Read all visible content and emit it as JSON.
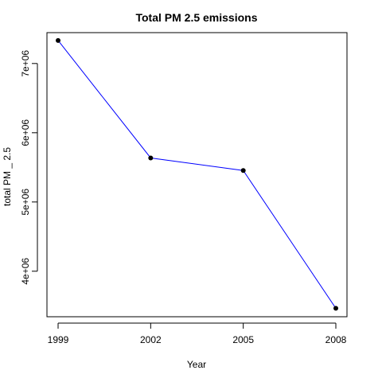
{
  "chart_data": {
    "type": "line",
    "title": "Total PM 2.5 emissions",
    "xlabel": "Year",
    "ylabel": "total PM _ 2.5",
    "x": [
      1999,
      2002,
      2005,
      2008
    ],
    "y": [
      7332967,
      5635780,
      5454703,
      3464206
    ],
    "xlim": [
      1999,
      2008
    ],
    "ylim": [
      3400000,
      7400000
    ],
    "x_ticks": [
      1999,
      2002,
      2005,
      2008
    ],
    "x_tick_labels": [
      "1999",
      "2002",
      "2005",
      "2008"
    ],
    "y_ticks": [
      4000000,
      5000000,
      6000000,
      7000000
    ],
    "y_tick_labels": [
      "4e+06",
      "5e+06",
      "6e+06",
      "7e+06"
    ],
    "line_color": "#0000ff",
    "point_color": "#000000",
    "grid": false,
    "legend": "none"
  }
}
